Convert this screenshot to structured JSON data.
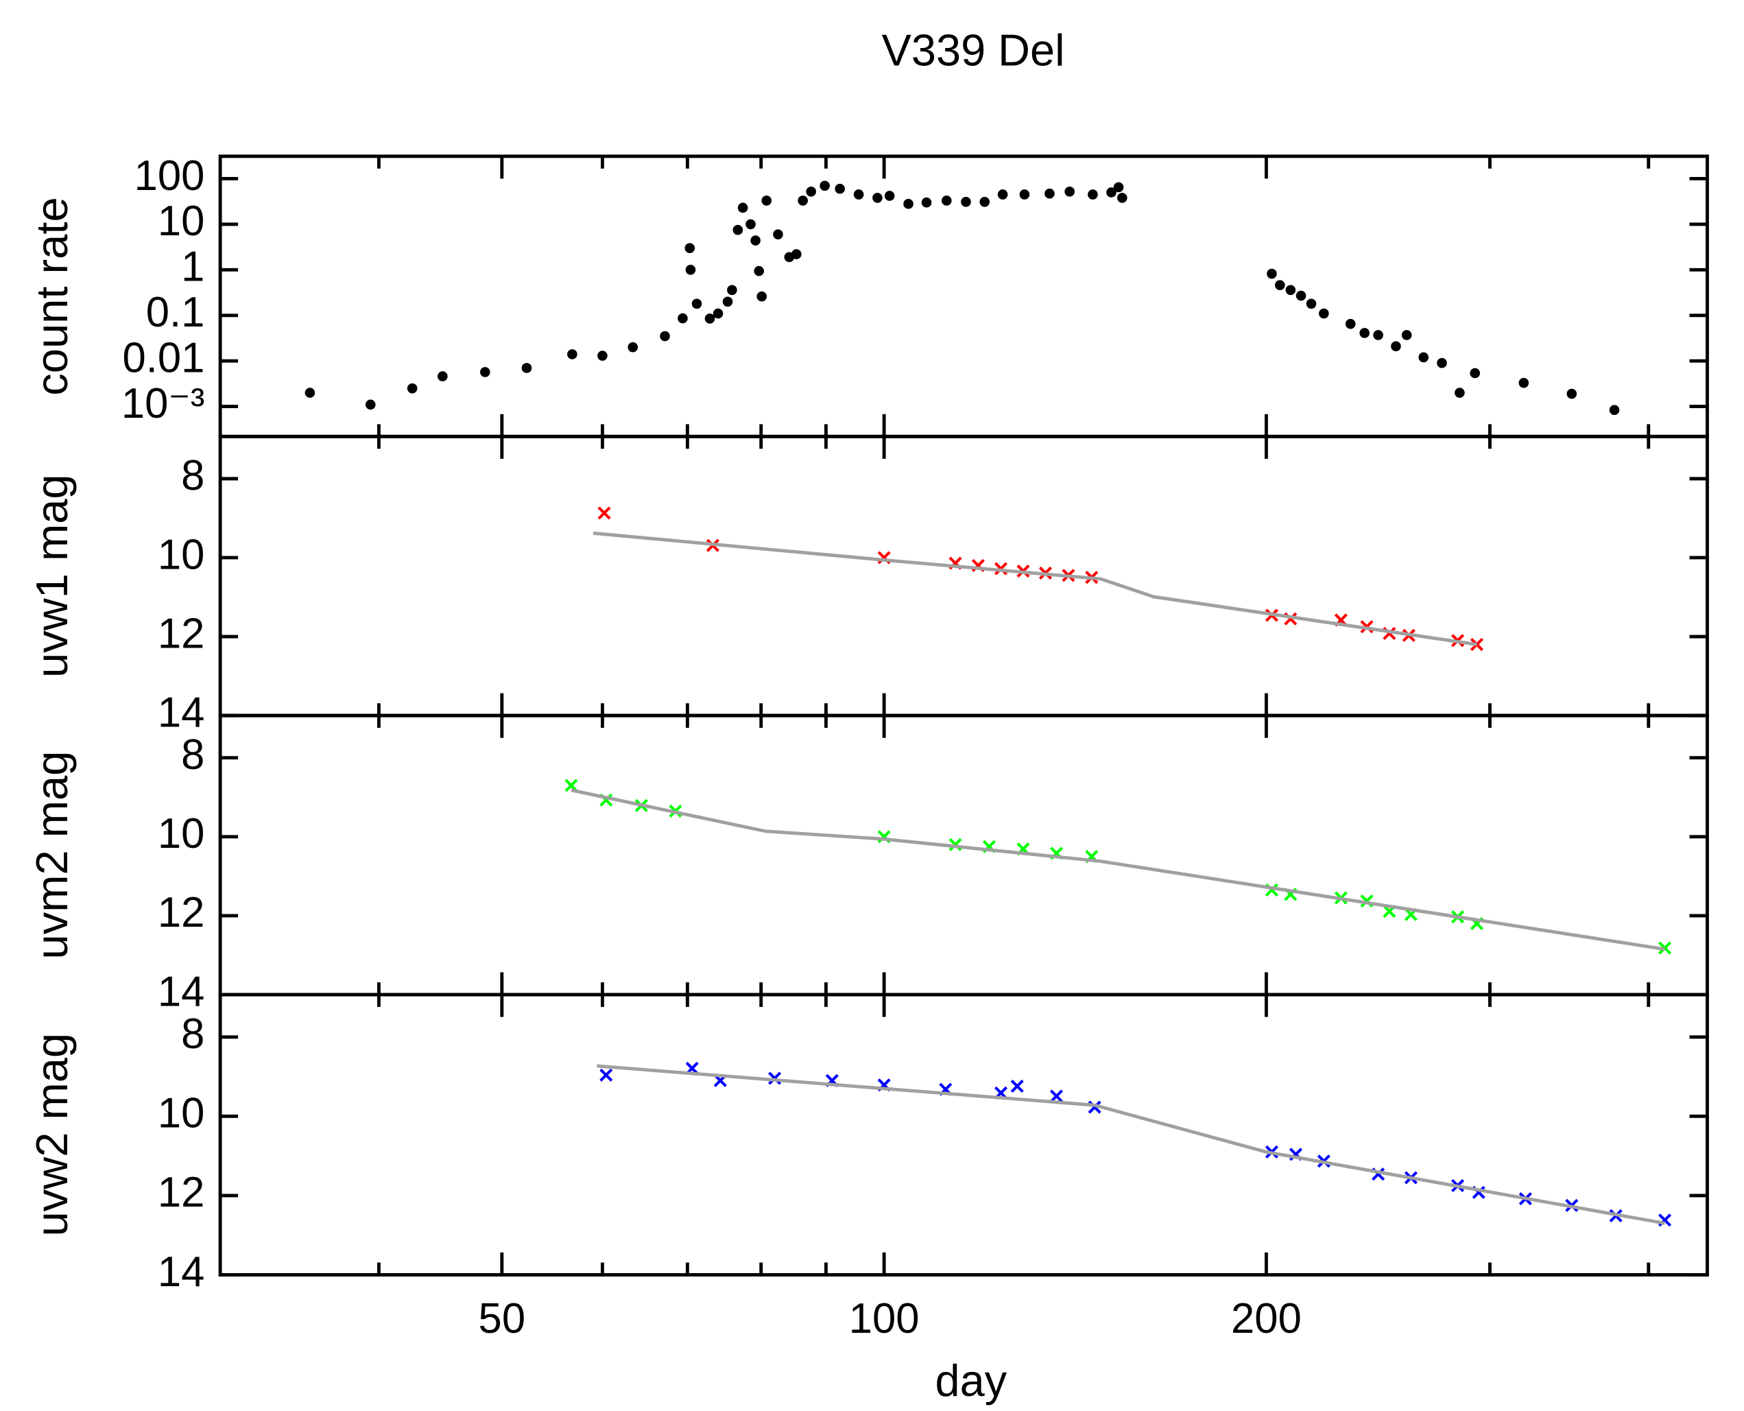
{
  "chart_data": [
    {
      "type": "scatter",
      "title": "V339 Del",
      "ylabel": "count rate",
      "ylog": true,
      "ylim": [
        0.00022,
        310
      ],
      "yticks": [
        100,
        10,
        1,
        0.1,
        0.01,
        {
          "value": 0.001,
          "label": "10⁻³"
        }
      ],
      "series": [
        {
          "kind": "scatter",
          "color": "#000000",
          "x": [
            35.3,
            39.4,
            42.5,
            44.9,
            48.5,
            52.3,
            56.8,
            60,
            63.4,
            67.2,
            69.4,
            70.3,
            70.4,
            71.2,
            72.9,
            74,
            75.3,
            75.9,
            76.7,
            77.4,
            78.5,
            79.2,
            79.7,
            80.1,
            80.8,
            82.5,
            84.2,
            85.3,
            86.3,
            87.6,
            89.8,
            92.3,
            95.5,
            98.8,
            101,
            104.5,
            108,
            112,
            116,
            120,
            124,
            129,
            135,
            140,
            146,
            151,
            153,
            154,
            202,
            205,
            209,
            213,
            217,
            222,
            233,
            239,
            245,
            253,
            258,
            266,
            275,
            284,
            292,
            319,
            348,
            376
          ],
          "values": [
            0.002,
            0.0011,
            0.0025,
            0.0046,
            0.0057,
            0.007,
            0.014,
            0.013,
            0.02,
            0.035,
            0.086,
            3.0,
            1,
            0.18,
            0.085,
            0.11,
            0.2,
            0.36,
            7.5,
            23,
            10,
            4.4,
            0.94,
            0.26,
            33,
            6,
            1.9,
            2.2,
            33,
            52,
            70,
            60,
            45,
            38,
            42,
            28,
            30,
            33,
            31,
            31,
            45,
            45,
            47,
            52,
            45,
            50,
            65,
            38,
            0.82,
            0.46,
            0.36,
            0.27,
            0.18,
            0.11,
            0.065,
            0.041,
            0.037,
            0.021,
            0.037,
            0.012,
            0.009,
            0.002,
            0.0054,
            0.0033,
            0.0019,
            0.00084
          ]
        }
      ]
    },
    {
      "type": "scatter",
      "ylabel": "uvw1 mag",
      "ylim": [
        14,
        6.93
      ],
      "yticks": [
        8,
        10,
        12,
        14
      ],
      "series": [
        {
          "kind": "scatter",
          "color": "#ff0000",
          "x": [
            60.2,
            73.3,
            100,
            113.8,
            118.6,
            123.6,
            128.7,
            134,
            139.7,
            145.7,
            202,
            209,
            229,
            240,
            250,
            259,
            283,
            293
          ],
          "values": [
            8.87,
            9.69,
            10.0,
            10.14,
            10.2,
            10.28,
            10.34,
            10.39,
            10.45,
            10.5,
            11.46,
            11.55,
            11.58,
            11.75,
            11.92,
            11.97,
            12.1,
            12.2
          ]
        },
        {
          "kind": "line",
          "color": "#a0a0a0",
          "x": [
            59,
            100,
            148.2,
            163,
            293
          ],
          "values": [
            9.38,
            10.06,
            10.54,
            10.99,
            12.2
          ]
        }
      ]
    },
    {
      "type": "scatter",
      "ylabel": "uvm2 mag",
      "ylim": [
        14,
        6.93
      ],
      "yticks": [
        8,
        10,
        12,
        14
      ],
      "series": [
        {
          "kind": "scatter",
          "color": "#00ff00",
          "x": [
            56.7,
            60.4,
            64.4,
            68.5,
            100,
            113.8,
            121,
            128.7,
            136.7,
            145.7,
            202,
            209,
            229,
            240,
            250,
            260,
            283,
            293,
            412
          ],
          "values": [
            8.7,
            9.07,
            9.21,
            9.35,
            10.0,
            10.2,
            10.25,
            10.31,
            10.42,
            10.5,
            11.35,
            11.46,
            11.55,
            11.63,
            11.89,
            11.97,
            12.03,
            12.2,
            12.82
          ]
        },
        {
          "kind": "line",
          "color": "#a0a0a0",
          "x": [
            56.7,
            80.6,
            100,
            148,
            412
          ],
          "values": [
            8.82,
            9.86,
            10.06,
            10.62,
            12.85
          ]
        }
      ]
    },
    {
      "type": "scatter",
      "ylabel": "uvw2 mag",
      "ylim": [
        14,
        6.93
      ],
      "yticks": [
        8,
        10,
        12,
        14
      ],
      "xlabel": "day",
      "xlog": true,
      "xlim": [
        30,
        445
      ],
      "xticks": [
        50,
        100,
        200
      ],
      "xminorticks": [
        40,
        60,
        70,
        80,
        90,
        300,
        400
      ],
      "series": [
        {
          "kind": "scatter",
          "color": "#0000ff",
          "x": [
            60.4,
            70.6,
            74.3,
            82,
            91,
            100,
            111.8,
            123.6,
            127.3,
            136.7,
            146.5,
            202,
            211,
            222,
            245,
            260,
            283,
            294,
            320,
            348,
            377,
            412
          ],
          "values": [
            8.96,
            8.79,
            9.1,
            9.04,
            9.1,
            9.21,
            9.32,
            9.41,
            9.24,
            9.49,
            9.77,
            10.9,
            10.96,
            11.13,
            11.46,
            11.55,
            11.75,
            11.92,
            12.08,
            12.25,
            12.51,
            12.62
          ]
        },
        {
          "kind": "line",
          "color": "#a0a0a0",
          "x": [
            59.4,
            146.5,
            200,
            412
          ],
          "values": [
            8.73,
            9.72,
            10.9,
            12.7
          ]
        }
      ]
    }
  ]
}
